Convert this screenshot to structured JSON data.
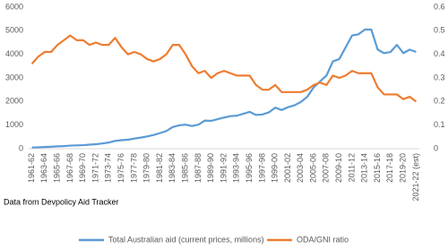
{
  "chart_data": {
    "type": "line",
    "categories": [
      "1961-62",
      null,
      "1963-64",
      null,
      "1965-66",
      null,
      "1967-68",
      null,
      "1969-70",
      null,
      "1971-72",
      null,
      "1973-74",
      null,
      "1975-76",
      null,
      "1977-78",
      null,
      "1979-80",
      null,
      "1981-82",
      null,
      "1983-84",
      null,
      "1985-86",
      null,
      "1987-88",
      null,
      "1989-90",
      null,
      "1991-92",
      null,
      "1993-94",
      null,
      "1995-96",
      null,
      "1997-98",
      null,
      "1999-00",
      null,
      "2001-02",
      null,
      "2003-04",
      null,
      "2005-06",
      null,
      "2007-08",
      null,
      "2009-10",
      null,
      "2011-12",
      null,
      "2013-14",
      null,
      "2015-16",
      null,
      "2017-18",
      null,
      "2019-20",
      null,
      "2021-22 (est)"
    ],
    "series": [
      {
        "name": "Total Australian aid (current prices, millions)",
        "color": "#5b9bd5",
        "values": [
          50,
          60,
          70,
          80,
          100,
          110,
          130,
          140,
          150,
          170,
          190,
          220,
          260,
          330,
          360,
          380,
          430,
          470,
          520,
          580,
          660,
          750,
          920,
          990,
          1020,
          960,
          1020,
          1190,
          1180,
          1250,
          1320,
          1380,
          1400,
          1480,
          1560,
          1430,
          1450,
          1540,
          1740,
          1640,
          1760,
          1840,
          1980,
          2200,
          2600,
          2850,
          3100,
          3700,
          3800,
          4300,
          4800,
          4850,
          5050,
          5050,
          4200,
          4050,
          4100,
          4400,
          4050,
          4200,
          4100
        ]
      },
      {
        "name": "ODA/GNI ratio",
        "color": "#ed7d31",
        "axis": "y2",
        "values": [
          0.36,
          0.39,
          0.41,
          0.41,
          0.44,
          0.46,
          0.48,
          0.46,
          0.46,
          0.44,
          0.45,
          0.44,
          0.44,
          0.47,
          0.43,
          0.4,
          0.41,
          0.4,
          0.38,
          0.37,
          0.38,
          0.4,
          0.44,
          0.44,
          0.4,
          0.35,
          0.32,
          0.33,
          0.3,
          0.32,
          0.33,
          0.32,
          0.31,
          0.31,
          0.31,
          0.27,
          0.25,
          0.25,
          0.27,
          0.24,
          0.24,
          0.24,
          0.24,
          0.25,
          0.27,
          0.28,
          0.27,
          0.31,
          0.3,
          0.31,
          0.33,
          0.32,
          0.32,
          0.32,
          0.26,
          0.23,
          0.23,
          0.23,
          0.21,
          0.22,
          0.2
        ]
      }
    ],
    "ylim": [
      0,
      6000
    ],
    "yticks": [
      0,
      1000,
      2000,
      3000,
      4000,
      5000,
      6000
    ],
    "y2lim": [
      0,
      0.6
    ],
    "y2ticks": [
      0,
      0.1,
      0.2,
      0.3,
      0.4,
      0.5,
      0.6
    ],
    "source": "Data from Devpolicy Aid Tracker",
    "legend": "bottom"
  }
}
